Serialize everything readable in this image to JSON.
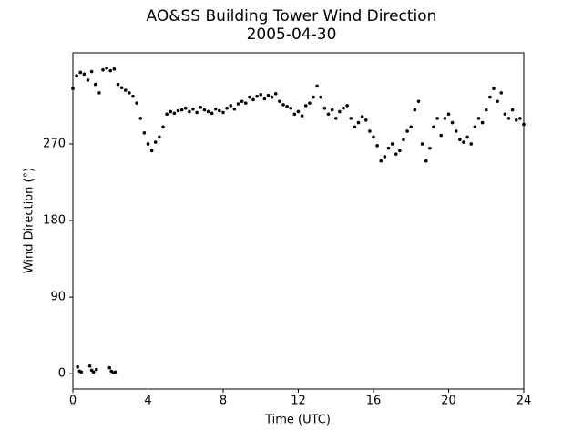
{
  "chart_data": {
    "type": "scatter",
    "title": "AO&SS Building Tower Wind Direction",
    "subtitle": "2005-04-30",
    "xlabel": "Time (UTC)",
    "ylabel": "Wind Direction (°)",
    "xlim": [
      0,
      24
    ],
    "xticks": [
      0,
      4,
      8,
      12,
      16,
      20,
      24
    ],
    "ylim": [
      -18,
      377
    ],
    "yticks": [
      0,
      90,
      180,
      270
    ],
    "color": "#000000",
    "x": [
      0,
      0.2,
      0.4,
      0.6,
      0.8,
      1,
      1.2,
      1.4,
      1.6,
      1.8,
      2,
      2.2,
      2.4,
      2.6,
      2.8,
      3,
      3.2,
      3.4,
      3.6,
      3.8,
      4,
      4.2,
      4.4,
      4.6,
      4.8,
      5,
      5.2,
      5.4,
      5.6,
      5.8,
      6,
      6.2,
      6.4,
      6.6,
      6.8,
      7,
      7.2,
      7.4,
      7.6,
      7.8,
      8,
      8.2,
      8.4,
      8.6,
      8.8,
      9,
      9.2,
      9.4,
      9.6,
      9.8,
      10,
      10.2,
      10.4,
      10.6,
      10.8,
      11,
      11.2,
      11.4,
      11.6,
      11.8,
      12,
      12.2,
      12.4,
      12.6,
      12.8,
      13,
      13.2,
      13.4,
      13.6,
      13.8,
      14,
      14.2,
      14.4,
      14.6,
      14.8,
      15,
      15.2,
      15.4,
      15.6,
      15.8,
      16,
      16.2,
      16.4,
      16.6,
      16.8,
      17,
      17.2,
      17.4,
      17.6,
      17.8,
      18,
      18.2,
      18.4,
      18.6,
      18.8,
      19,
      19.2,
      19.4,
      19.6,
      19.8,
      20,
      20.2,
      20.4,
      20.6,
      20.8,
      21,
      21.2,
      21.4,
      21.6,
      21.8,
      22,
      22.2,
      22.4,
      22.6,
      22.8,
      23,
      23.2,
      23.4,
      23.6,
      23.8,
      24,
      0.25,
      0.35,
      0.45,
      0.9,
      1,
      1.1,
      1.25,
      1.95,
      2.05,
      2.15,
      2.25
    ],
    "values": [
      335,
      350,
      354,
      352,
      345,
      355,
      340,
      330,
      357,
      359,
      356,
      358,
      340,
      336,
      333,
      330,
      326,
      318,
      300,
      283,
      270,
      262,
      272,
      278,
      290,
      305,
      308,
      306,
      309,
      310,
      312,
      308,
      311,
      307,
      313,
      310,
      308,
      306,
      311,
      309,
      307,
      312,
      315,
      311,
      317,
      320,
      318,
      325,
      322,
      326,
      328,
      323,
      327,
      325,
      329,
      320,
      316,
      314,
      312,
      305,
      308,
      303,
      315,
      318,
      325,
      338,
      325,
      312,
      305,
      310,
      300,
      308,
      312,
      315,
      300,
      290,
      295,
      302,
      298,
      285,
      278,
      268,
      250,
      255,
      265,
      270,
      258,
      262,
      275,
      285,
      290,
      310,
      320,
      270,
      250,
      265,
      290,
      300,
      280,
      300,
      305,
      295,
      285,
      275,
      272,
      278,
      270,
      290,
      300,
      295,
      310,
      325,
      335,
      320,
      330,
      305,
      300,
      310,
      298,
      300,
      293,
      8,
      3,
      2,
      9,
      4,
      2,
      5,
      7,
      3,
      1,
      2
    ]
  }
}
